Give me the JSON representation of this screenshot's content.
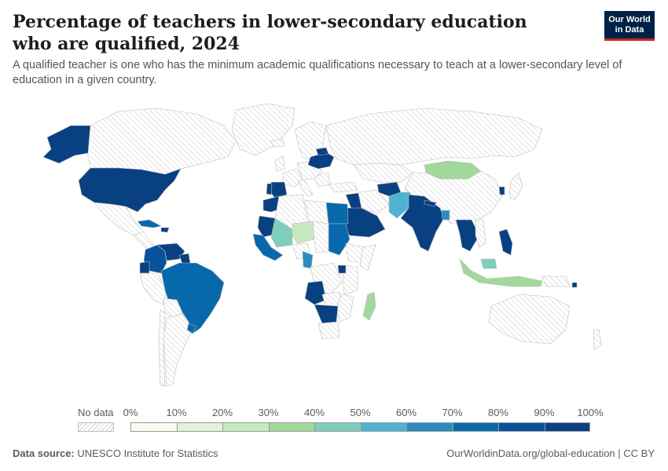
{
  "header": {
    "title": "Percentage of teachers in lower-secondary education who are qualified, 2024",
    "subtitle": "A qualified teacher is one who has the minimum academic qualifications necessary to teach at a lower-secondary level of education in a given country.",
    "logo_line1": "Our World",
    "logo_line2": "in Data"
  },
  "legend": {
    "nodata_label": "No data",
    "ticks": [
      "0%",
      "10%",
      "20%",
      "30%",
      "40%",
      "50%",
      "60%",
      "70%",
      "80%",
      "90%",
      "100%"
    ],
    "colors": [
      "#f7fcf0",
      "#e0f3db",
      "#c7e9c0",
      "#a1d99b",
      "#7fcdbb",
      "#4eb3d3",
      "#2b8cbe",
      "#0868ac",
      "#08519c",
      "#084081"
    ]
  },
  "colors": {
    "nodata_fill": "#e8e8e8",
    "hatch": "#cfcfcf",
    "border": "#bdbdbd"
  },
  "footer": {
    "source_label": "Data source:",
    "source_value": "UNESCO Institute for Statistics",
    "url": "OurWorldinData.org/global-education | CC BY"
  },
  "map_data": {
    "countries": [
      {
        "name": "United States",
        "value": 96
      },
      {
        "name": "Canada",
        "value": null
      },
      {
        "name": "Mexico",
        "value": null
      },
      {
        "name": "Brazil",
        "value": 75
      },
      {
        "name": "Colombia",
        "value": 85
      },
      {
        "name": "Venezuela",
        "value": 90
      },
      {
        "name": "Russia",
        "value": null
      },
      {
        "name": "Mongolia",
        "value": 33
      },
      {
        "name": "India",
        "value": 92
      },
      {
        "name": "Pakistan",
        "value": 55
      },
      {
        "name": "Saudi Arabia",
        "value": 95
      },
      {
        "name": "Egypt",
        "value": 80
      },
      {
        "name": "Mali",
        "value": 45
      },
      {
        "name": "Niger",
        "value": 25
      },
      {
        "name": "Sudan",
        "value": 70
      },
      {
        "name": "Angola",
        "value": 90
      },
      {
        "name": "Madagascar",
        "value": 32
      },
      {
        "name": "Indonesia",
        "value": 35
      },
      {
        "name": "Philippines",
        "value": 90
      },
      {
        "name": "Thailand",
        "value": 92
      },
      {
        "name": "Ukraine",
        "value": 92
      },
      {
        "name": "Australia",
        "value": null
      }
    ]
  }
}
